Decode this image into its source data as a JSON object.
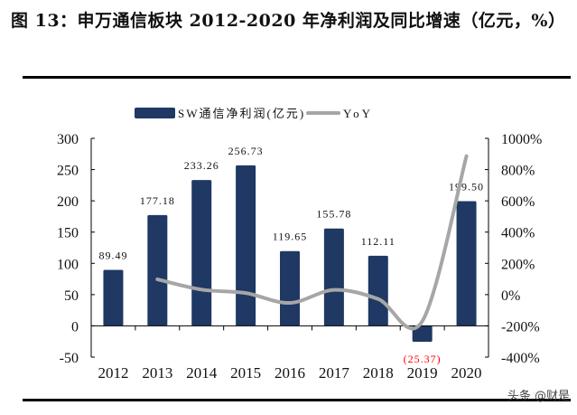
{
  "title": "图 13：申万通信板块 2012-2020 年净利润及同比增速（亿元，%）",
  "watermark": "头条 @财是",
  "chart_data": {
    "type": "bar+line",
    "categories": [
      "2012",
      "2013",
      "2014",
      "2015",
      "2016",
      "2017",
      "2018",
      "2019",
      "2020"
    ],
    "series": [
      {
        "name": "SW通信净利润(亿元)",
        "type": "bar",
        "axis": "left",
        "color": "#1f3864",
        "values": [
          89.49,
          177.18,
          233.26,
          256.73,
          119.65,
          155.78,
          112.11,
          -25.37,
          199.5
        ],
        "labels": [
          "89.49",
          "177.18",
          "233.26",
          "256.73",
          "119.65",
          "155.78",
          "112.11",
          "(25.37)",
          "199.50"
        ]
      },
      {
        "name": "YoY",
        "type": "line",
        "axis": "right",
        "color": "#a6a6a6",
        "values": [
          null,
          98,
          32,
          10,
          -53,
          30,
          -28,
          -170,
          886
        ]
      }
    ],
    "left_axis": {
      "range": [
        -50,
        300
      ],
      "ticks": [
        "300",
        "250",
        "200",
        "150",
        "100",
        "50",
        "0",
        "-50"
      ],
      "tick_values": [
        300,
        250,
        200,
        150,
        100,
        50,
        0,
        -50
      ]
    },
    "right_axis": {
      "range": [
        -400,
        1000
      ],
      "ticks": [
        "1000%",
        "800%",
        "600%",
        "400%",
        "200%",
        "0%",
        "-200%",
        "-400%"
      ],
      "tick_values": [
        1000,
        800,
        600,
        400,
        200,
        0,
        -200,
        -400
      ]
    },
    "negative_label_color": "#ff0000",
    "legend_position": "top",
    "grid": false
  }
}
